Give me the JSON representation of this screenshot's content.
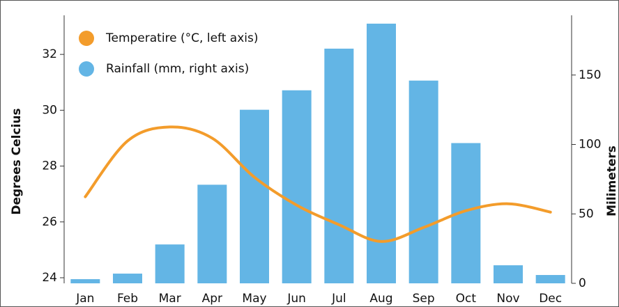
{
  "chart_data": {
    "type": "bar_line",
    "categories": [
      "Jan",
      "Feb",
      "Mar",
      "Apr",
      "May",
      "Jun",
      "Jul",
      "Aug",
      "Sep",
      "Oct",
      "Nov",
      "Dec"
    ],
    "series": [
      {
        "name": "Temperatire (°C, left axis)",
        "type": "line",
        "color": "#f39c2b",
        "values": [
          26.9,
          28.9,
          29.4,
          29.0,
          27.6,
          26.6,
          25.9,
          25.3,
          25.8,
          26.4,
          26.65,
          26.35
        ]
      },
      {
        "name": "Rainfall (mm, right axis)",
        "type": "bar",
        "axis": "y2",
        "color": "#63b5e5",
        "values": [
          3,
          7,
          28,
          71,
          125,
          139,
          169,
          187,
          146,
          101,
          13,
          6
        ]
      }
    ],
    "ylabel": "Degrees Celcius",
    "y2label": "Milimeters",
    "ylim": [
      23.8,
      33.4
    ],
    "yticks": [
      24,
      26,
      28,
      30,
      32
    ],
    "y2lim": [
      0,
      193
    ],
    "y2ticks": [
      0,
      50,
      100,
      150
    ],
    "legend": "upper left"
  }
}
